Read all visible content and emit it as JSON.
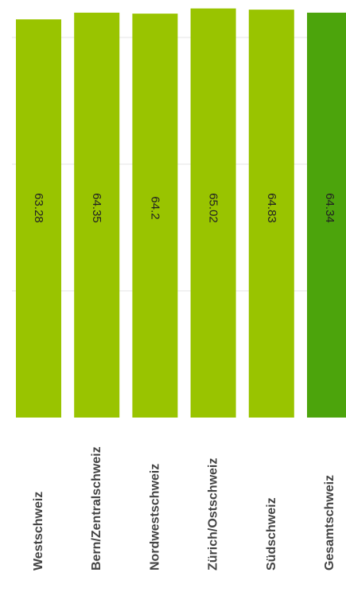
{
  "chart_data": {
    "type": "bar",
    "categories": [
      "Westschweiz",
      "Bern/Zentralschweiz",
      "Nordwestschweiz",
      "Zürich/Ostschweiz",
      "Südschweiz",
      "Gesamtschweiz"
    ],
    "values": [
      63.28,
      64.35,
      64.2,
      65.02,
      64.83,
      64.34
    ],
    "data_labels": [
      "63.28",
      "64.35",
      "64.2",
      "65.02",
      "64.83",
      "64.34"
    ],
    "ylim": [
      0,
      65.6
    ],
    "grid": true,
    "label_orientation": "rotated-90",
    "colors": {
      "bar": "#99c400",
      "highlight_bar": "#4ca40c",
      "grid": "#e6e6e6",
      "value_label": "#222222",
      "category_label": "#444444"
    },
    "highlight_index": 5
  }
}
